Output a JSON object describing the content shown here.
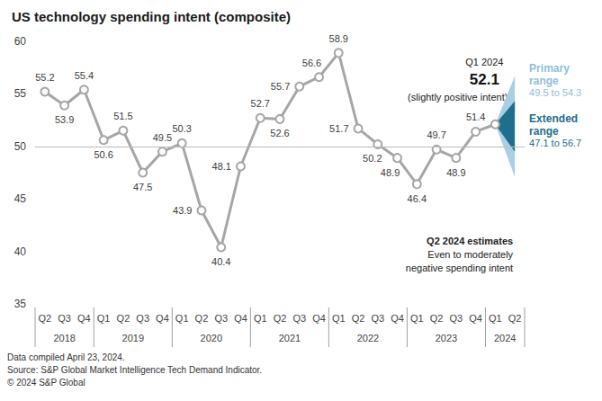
{
  "chart_data": {
    "type": "line",
    "title": "US technology spending intent (composite)",
    "categories": [
      "Q2",
      "Q3",
      "Q4",
      "Q1",
      "Q2",
      "Q3",
      "Q4",
      "Q1",
      "Q2",
      "Q3",
      "Q4",
      "Q1",
      "Q2",
      "Q3",
      "Q4",
      "Q1",
      "Q2",
      "Q3",
      "Q4",
      "Q1",
      "Q2",
      "Q3",
      "Q4",
      "Q1",
      "Q2"
    ],
    "category_groups": [
      {
        "label": "2018",
        "span": 3
      },
      {
        "label": "2019",
        "span": 4
      },
      {
        "label": "2020",
        "span": 4
      },
      {
        "label": "2021",
        "span": 4
      },
      {
        "label": "2022",
        "span": 4
      },
      {
        "label": "2023",
        "span": 4
      },
      {
        "label": "2024",
        "span": 2
      }
    ],
    "values": [
      55.2,
      53.9,
      55.4,
      50.6,
      51.5,
      47.5,
      49.5,
      50.3,
      43.9,
      40.4,
      48.1,
      52.7,
      52.6,
      55.7,
      56.6,
      58.9,
      51.7,
      50.2,
      48.9,
      46.4,
      49.7,
      48.9,
      51.4,
      52.1,
      null
    ],
    "value_labels": [
      "55.2",
      "53.9",
      "55.4",
      "50.6",
      "51.5",
      "47.5",
      "49.5",
      "50.3",
      "43.9",
      "40.4",
      "48.1",
      "52.7",
      "52.6",
      "55.7",
      "56.6",
      "58.9",
      "51.7",
      "50.2",
      "48.9",
      "46.4",
      "49.7",
      "48.9",
      "51.4",
      null,
      null
    ],
    "data_labels": true,
    "color": "#a6a6a6",
    "marker": "circle",
    "ylim": [
      35,
      60
    ],
    "yticks": [
      35,
      40,
      45,
      50,
      55,
      60
    ],
    "grid": false,
    "reference_line": 50,
    "annotations": {
      "latest": {
        "label": "Q1 2024",
        "value_text": "52.1",
        "note": "(slightly positive intent)"
      },
      "estimate": {
        "title": "Q2 2024 estimates",
        "lines": [
          "Even to moderately",
          "negative spending intent"
        ]
      }
    },
    "forecast": {
      "primary": {
        "label": "Primary range",
        "range_label": "49.5 to 54.3",
        "low": 49.5,
        "high": 54.3,
        "color": "#1f6e8c"
      },
      "extended": {
        "label": "Extended range",
        "range_label": "47.1 to 56.7",
        "low": 47.1,
        "high": 56.7,
        "color": "#a9cfe2"
      }
    },
    "notes": [
      "Data compiled April 23, 2024.",
      "Source: S&P Global Market Intelligence Tech Demand Indicator.",
      "© 2024 S&P Global"
    ]
  }
}
